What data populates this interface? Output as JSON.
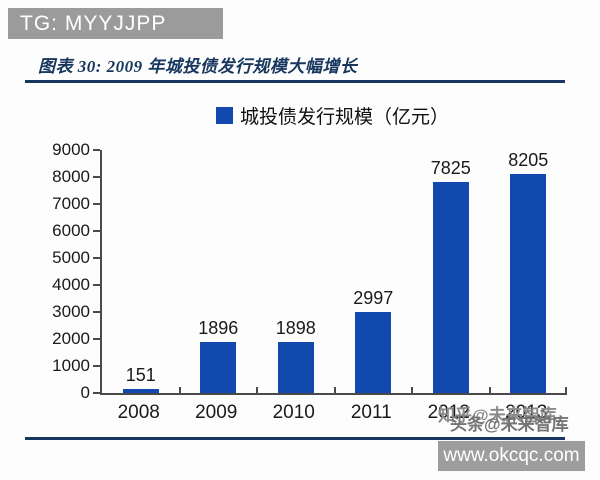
{
  "banner": {
    "text": "TG: MYYJJPP",
    "bg_color": "#9b9b9b"
  },
  "figure": {
    "title": "图表 30:  2009 年城投债发行规模大幅增长"
  },
  "legend": {
    "label": "城投债发行规模（亿元）"
  },
  "chart_data": {
    "type": "bar",
    "title": "图表 30: 2009 年城投债发行规模大幅增长",
    "legend_entries": [
      "城投债发行规模（亿元）"
    ],
    "legend_position": "top",
    "categories": [
      "2008",
      "2009",
      "2010",
      "2011",
      "2012",
      "2013"
    ],
    "values": [
      151,
      1896,
      1898,
      2997,
      7825,
      8205
    ],
    "xlabel": "",
    "ylabel": "",
    "ylim": [
      0,
      9000
    ],
    "ytick_step": 1000,
    "grid": false,
    "bar_color": "#1149ae"
  },
  "watermarks": {
    "overlay_text_1": "知乎@未来智库",
    "overlay_text_2": "头条@未来智库",
    "site_url": "www.okcqc.com"
  },
  "colors": {
    "accent_navy": "#17375e",
    "bar_blue": "#1149ae",
    "axis_gray": "#4a4a4a",
    "banner_gray": "#9b9b9b",
    "watermark_gray": "#8b8b8b"
  }
}
